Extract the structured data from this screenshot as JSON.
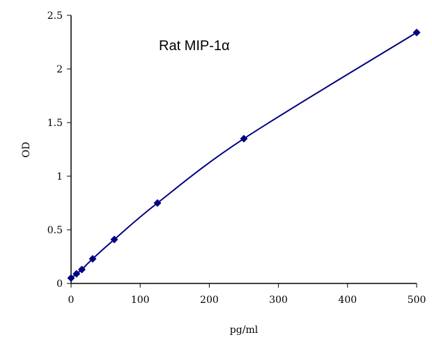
{
  "chart_data": {
    "type": "line",
    "title": "Rat   MIP-1α",
    "xlabel": "pg/ml",
    "ylabel": "OD",
    "xlim": [
      0,
      500
    ],
    "ylim": [
      0,
      2.5
    ],
    "xticks": [
      "0",
      "100",
      "200",
      "300",
      "400",
      "500"
    ],
    "yticks": [
      "0",
      "0.5",
      "1",
      "1.5",
      "2",
      "2.5"
    ],
    "grid": false,
    "series": [
      {
        "x": [
          0,
          7.8,
          15.6,
          31.25,
          62.5,
          125,
          250,
          500
        ],
        "y": [
          0.05,
          0.09,
          0.13,
          0.23,
          0.41,
          0.75,
          1.35,
          2.34
        ],
        "color": "#000080",
        "marker": "diamond"
      }
    ]
  }
}
